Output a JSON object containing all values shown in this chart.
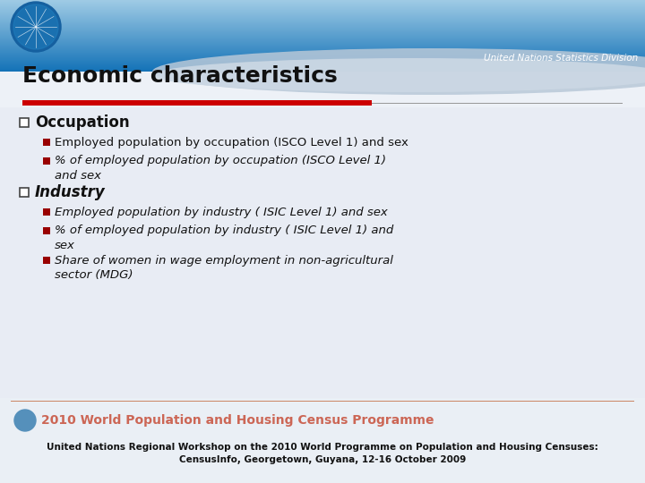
{
  "title": "Economic characteristics",
  "un_division_text": "United Nations Statistics Division",
  "red_bar_color": "#cc0000",
  "section1_header": "Occupation",
  "section1_bullet1": "Employed population by occupation (ISCO Level 1) and sex",
  "section1_bullet2_line1": "% of employed population by occupation (ISCO Level 1)",
  "section1_bullet2_line2": "and sex",
  "section2_header": "Industry",
  "section2_bullet1": "Employed population by industry ( ISIC Level 1) and sex",
  "section2_bullet2_line1": "% of employed population by industry ( ISIC Level 1) and",
  "section2_bullet2_line2": "sex",
  "section2_bullet3_line1": "Share of women in wage employment in non-agricultural",
  "section2_bullet3_line2": "sector (MDG)",
  "footer_census_text": "2010 World Population and Housing Census Programme",
  "footer_note_line1": "United Nations Regional Workshop on the 2010 World Programme on Population and Housing Censuses:",
  "footer_note_line2": "CensusInfo, Georgetown, Guyana, 12-16 October 2009",
  "bullet_color": "#990000",
  "text_color": "#111111",
  "footer_text_color": "#cc6655",
  "body_bg": "#e8ecf4",
  "stripe_color": "#dce4f0",
  "header_line_color": "#aabbcc"
}
